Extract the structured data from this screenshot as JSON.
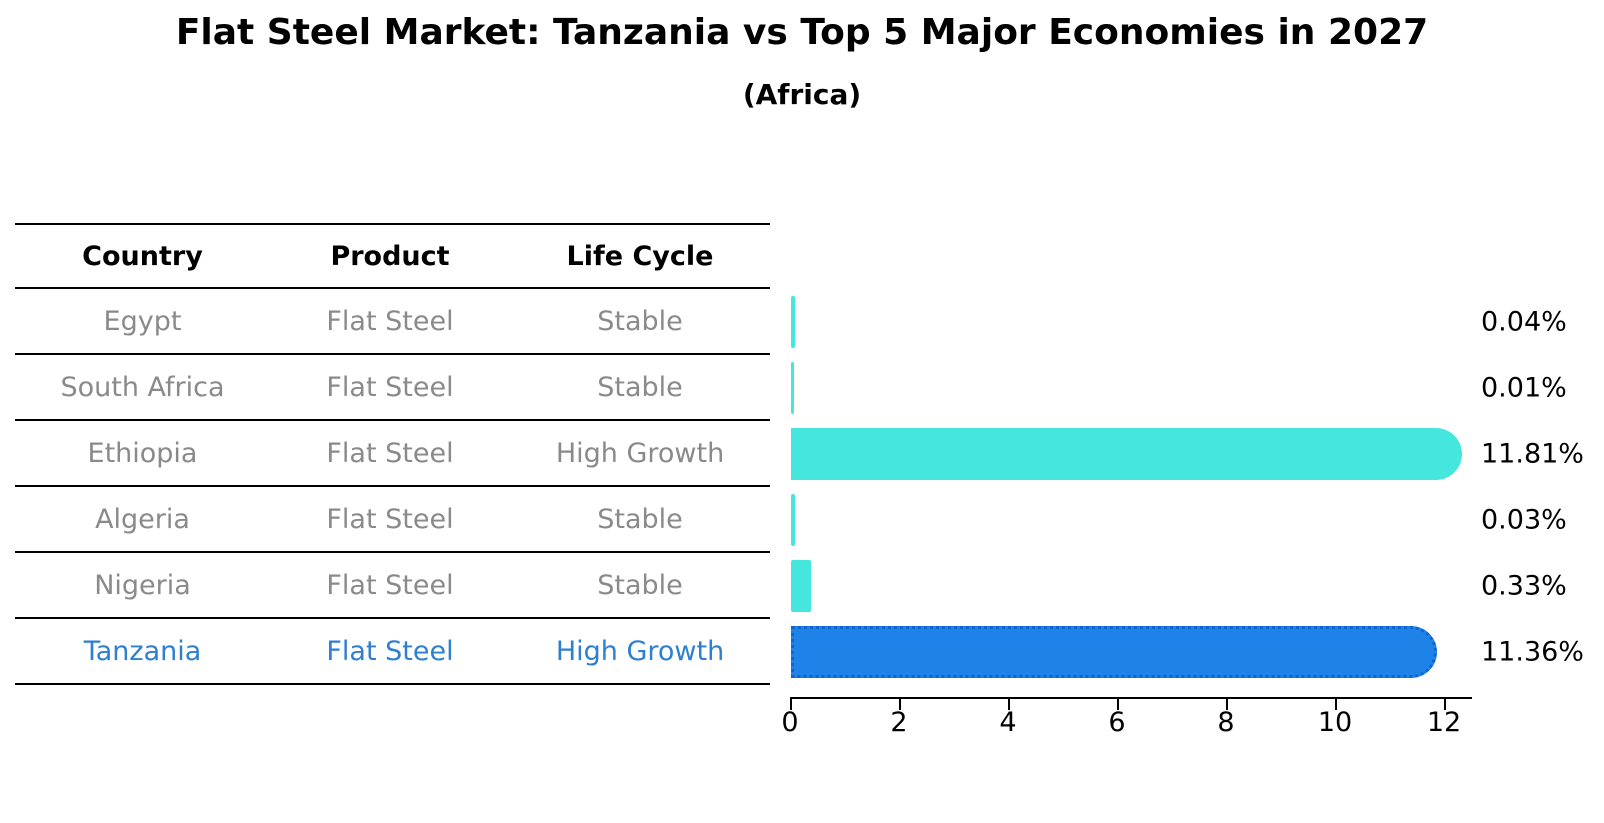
{
  "title": "Flat Steel Market: Tanzania vs Top 5 Major Economies in 2027",
  "subtitle": "(Africa)",
  "table": {
    "headers": [
      "Country",
      "Product",
      "Life Cycle"
    ],
    "rows": [
      {
        "country": "Egypt",
        "product": "Flat Steel",
        "life_cycle": "Stable",
        "highlighted": false
      },
      {
        "country": "South Africa",
        "product": "Flat Steel",
        "life_cycle": "Stable",
        "highlighted": false
      },
      {
        "country": "Ethiopia",
        "product": "Flat Steel",
        "life_cycle": "High Growth",
        "highlighted": false
      },
      {
        "country": "Algeria",
        "product": "Flat Steel",
        "life_cycle": "Stable",
        "highlighted": false
      },
      {
        "country": "Nigeria",
        "product": "Flat Steel",
        "life_cycle": "Stable",
        "highlighted": false
      },
      {
        "country": "Tanzania",
        "product": "Flat Steel",
        "life_cycle": "High Growth",
        "highlighted": true
      }
    ]
  },
  "chart_data": {
    "type": "bar",
    "orientation": "horizontal",
    "title": "Flat Steel Market: Tanzania vs Top 5 Major Economies in 2027",
    "subtitle": "(Africa)",
    "categories": [
      "Egypt",
      "South Africa",
      "Ethiopia",
      "Algeria",
      "Nigeria",
      "Tanzania"
    ],
    "values": [
      0.04,
      0.01,
      11.81,
      0.03,
      0.33,
      11.36
    ],
    "value_labels": [
      "0.04%",
      "0.01%",
      "11.81%",
      "0.03%",
      "0.33%",
      "11.36%"
    ],
    "highlight_index": 5,
    "xticks": [
      0,
      2,
      4,
      6,
      8,
      10,
      12
    ],
    "xlim": [
      0,
      12.5
    ],
    "grid": false,
    "legend": "none",
    "bar_color": "#45E6DE",
    "highlight_bar_color": "#1E82E8",
    "highlight_text_color": "#2E7FD0",
    "row_text_color": "#8a8a8a"
  }
}
